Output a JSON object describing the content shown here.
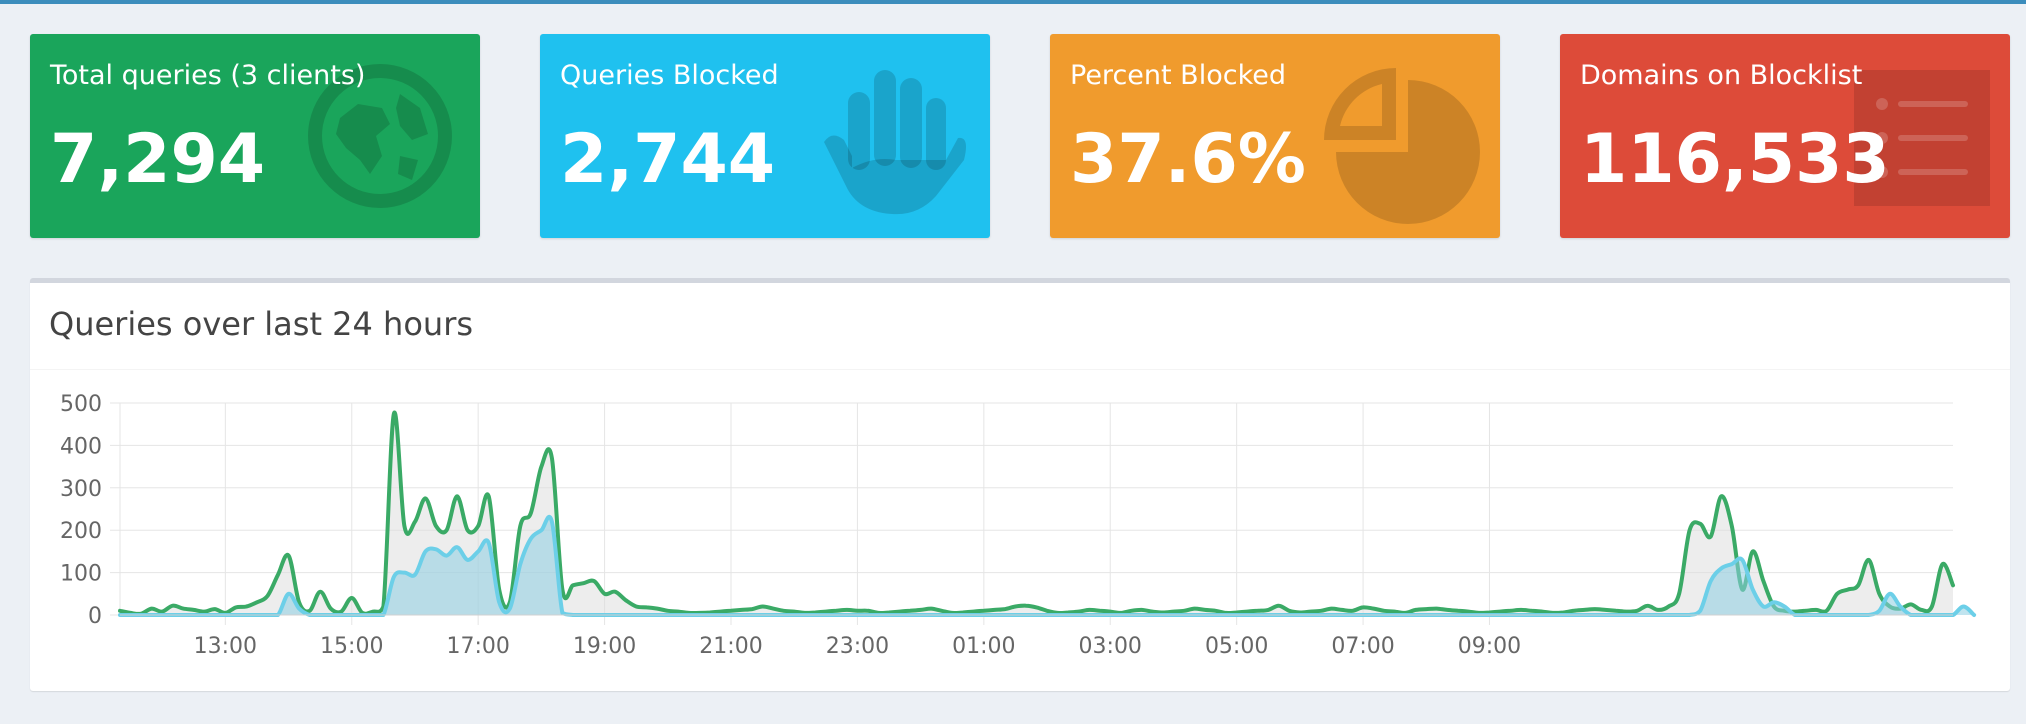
{
  "stats": [
    {
      "title": "Total queries (3 clients)",
      "value": "7,294",
      "color": "#1aa55b",
      "icon": "globe-icon"
    },
    {
      "title": "Queries Blocked",
      "value": "2,744",
      "color": "#1fc1ef",
      "icon": "hand-icon"
    },
    {
      "title": "Percent Blocked",
      "value": "37.6%",
      "color": "#f09b2d",
      "icon": "pie-chart-icon"
    },
    {
      "title": "Domains on Blocklist",
      "value": "116,533",
      "color": "#dd4b39",
      "icon": "list-icon"
    }
  ],
  "panel": {
    "title": "Queries over last 24 hours"
  },
  "chart_data": {
    "type": "area",
    "x_start": "11:20",
    "x_step_minutes": 10,
    "xticks": [
      "13:00",
      "15:00",
      "17:00",
      "19:00",
      "21:00",
      "23:00",
      "01:00",
      "03:00",
      "05:00",
      "07:00",
      "09:00"
    ],
    "yticks": [
      0,
      100,
      200,
      300,
      400,
      500
    ],
    "ylim": [
      0,
      500
    ],
    "grid": true,
    "legend": "none",
    "series": [
      {
        "color": "#3aaa66",
        "fill": "rgba(220,220,220,0.5)",
        "values": [
          10,
          5,
          3,
          15,
          8,
          22,
          15,
          12,
          8,
          14,
          5,
          18,
          20,
          30,
          45,
          95,
          140,
          30,
          10,
          55,
          15,
          8,
          40,
          5,
          8,
          20,
          475,
          210,
          220,
          275,
          210,
          200,
          280,
          200,
          210,
          280,
          60,
          30,
          210,
          240,
          350,
          370,
          60,
          70,
          75,
          80,
          50,
          55,
          35,
          20,
          18,
          15,
          10,
          8,
          5,
          5,
          6,
          8,
          10,
          12,
          14,
          20,
          15,
          10,
          8,
          5,
          6,
          8,
          10,
          12,
          10,
          10,
          5,
          6,
          8,
          10,
          12,
          15,
          10,
          5,
          6,
          8,
          10,
          12,
          14,
          20,
          22,
          18,
          10,
          5,
          6,
          8,
          12,
          10,
          8,
          5,
          10,
          12,
          8,
          6,
          8,
          10,
          15,
          12,
          10,
          5,
          6,
          8,
          10,
          12,
          22,
          10,
          6,
          8,
          10,
          15,
          12,
          10,
          18,
          15,
          10,
          8,
          5,
          12,
          14,
          15,
          12,
          10,
          8,
          5,
          6,
          8,
          10,
          12,
          10,
          8,
          5,
          6,
          10,
          12,
          14,
          12,
          10,
          8,
          10,
          22,
          12,
          20,
          50,
          200,
          215,
          185,
          280,
          210,
          60,
          150,
          80,
          20,
          10,
          8,
          10,
          12,
          10,
          50,
          60,
          70,
          130,
          50,
          20,
          15,
          25,
          12,
          20,
          120,
          70
        ]
      },
      {
        "color": "#6ccfe8",
        "fill": "rgba(140,205,225,0.55)",
        "values": [
          0,
          0,
          0,
          0,
          0,
          0,
          0,
          0,
          0,
          0,
          0,
          0,
          0,
          0,
          0,
          0,
          50,
          15,
          0,
          0,
          0,
          0,
          0,
          0,
          0,
          0,
          90,
          100,
          95,
          150,
          155,
          140,
          160,
          130,
          150,
          170,
          30,
          15,
          120,
          180,
          200,
          220,
          5,
          0,
          0,
          0,
          0,
          0,
          0,
          0,
          0,
          0,
          0,
          0,
          0,
          0,
          0,
          0,
          0,
          0,
          0,
          0,
          0,
          0,
          0,
          0,
          0,
          0,
          0,
          0,
          0,
          0,
          0,
          0,
          0,
          0,
          0,
          0,
          0,
          0,
          0,
          0,
          0,
          0,
          0,
          0,
          0,
          0,
          0,
          0,
          0,
          0,
          0,
          0,
          0,
          0,
          0,
          0,
          0,
          0,
          0,
          0,
          0,
          0,
          0,
          0,
          0,
          0,
          0,
          0,
          0,
          0,
          0,
          0,
          0,
          0,
          0,
          0,
          0,
          0,
          0,
          0,
          0,
          0,
          0,
          0,
          0,
          0,
          0,
          0,
          0,
          0,
          0,
          0,
          0,
          0,
          0,
          0,
          0,
          0,
          0,
          0,
          0,
          0,
          0,
          0,
          0,
          0,
          0,
          0,
          10,
          80,
          110,
          120,
          130,
          60,
          20,
          30,
          20,
          0,
          0,
          0,
          0,
          0,
          0,
          0,
          0,
          10,
          50,
          20,
          0,
          0,
          0,
          0,
          0,
          20,
          0
        ]
      }
    ]
  }
}
